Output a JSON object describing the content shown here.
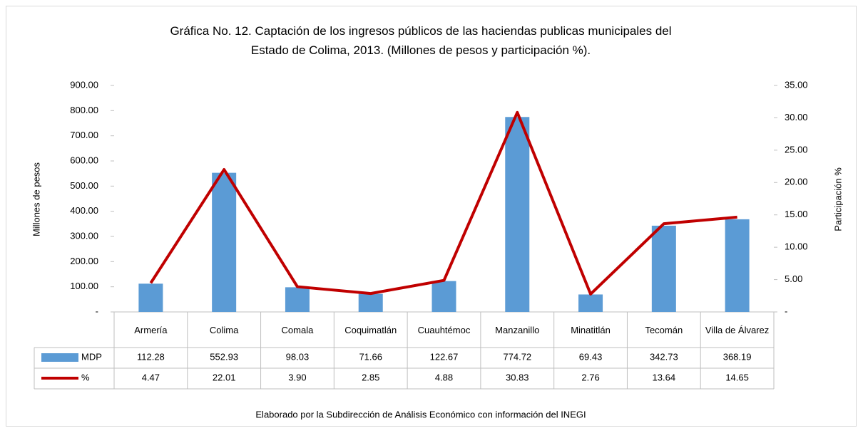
{
  "chart_data": {
    "type": "bar",
    "title": "Gráfica No. 12. Captación de los ingresos públicos de las haciendas publicas municipales del Estado de Colima, 2013. (Millones de pesos y participación %).",
    "ylabel": "Millones de pesos",
    "y2label": "Participación %",
    "source": "Elaborado por la Subdirección de Análisis Económico con información del INEGI",
    "categories": [
      "Armería",
      "Colima",
      "Comala",
      "Coquimatlán",
      "Cuauhtémoc",
      "Manzanillo",
      "Minatitlán",
      "Tecomán",
      "Villa de Álvarez"
    ],
    "series": [
      {
        "name": "MDP",
        "type": "bar",
        "color": "#5b9bd5",
        "values": [
          112.28,
          552.93,
          98.03,
          71.66,
          122.67,
          774.72,
          69.43,
          342.73,
          368.19
        ]
      },
      {
        "name": "%",
        "type": "line",
        "axis": "y2",
        "color": "#c00000",
        "values": [
          4.47,
          22.01,
          3.9,
          2.85,
          4.88,
          30.83,
          2.76,
          13.64,
          14.65
        ],
        "value_labels": [
          "4.47",
          "22.01",
          "3.90",
          "2.85",
          "4.88",
          "30.83",
          "2.76",
          "13.64",
          "14.65"
        ]
      }
    ],
    "ylim": [
      0,
      900
    ],
    "yticks": [
      {
        "value": 0,
        "label": "-"
      },
      {
        "value": 100,
        "label": "100.00"
      },
      {
        "value": 200,
        "label": "200.00"
      },
      {
        "value": 300,
        "label": "300.00"
      },
      {
        "value": 400,
        "label": "400.00"
      },
      {
        "value": 500,
        "label": "500.00"
      },
      {
        "value": 600,
        "label": "600.00"
      },
      {
        "value": 700,
        "label": "700.00"
      },
      {
        "value": 800,
        "label": "800.00"
      },
      {
        "value": 900,
        "label": "900.00"
      }
    ],
    "y2lim": [
      0,
      35
    ],
    "y2ticks": [
      {
        "value": 0,
        "label": "-"
      },
      {
        "value": 5,
        "label": "5.00"
      },
      {
        "value": 10,
        "label": "10.00"
      },
      {
        "value": 15,
        "label": "15.00"
      },
      {
        "value": 20,
        "label": "20.00"
      },
      {
        "value": 25,
        "label": "25.00"
      },
      {
        "value": 30,
        "label": "30.00"
      },
      {
        "value": 35,
        "label": "35.00"
      }
    ]
  }
}
